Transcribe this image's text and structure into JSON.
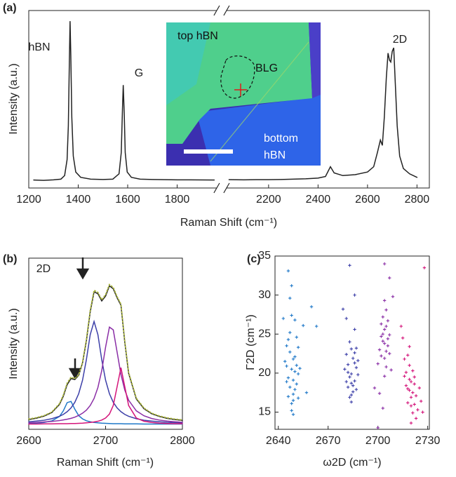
{
  "chart_data": [
    {
      "type": "line",
      "label": "(a)",
      "x_label": "Raman Shift (cm⁻¹)",
      "y_label": "Intensity (a.u.)",
      "annotations": [
        "hBN",
        "G",
        "2D"
      ],
      "inset_labels": [
        "top hBN",
        "BLG",
        "bottom",
        "hBN"
      ],
      "xlim": [
        1200,
        2850
      ],
      "x_break": [
        1960,
        2030
      ],
      "ylim": [
        0,
        1
      ],
      "xticks": [
        1200,
        1400,
        1600,
        1800,
        2200,
        2400,
        2600,
        2800
      ],
      "x": [
        1220,
        1260,
        1300,
        1330,
        1345,
        1355,
        1360,
        1364,
        1367,
        1370,
        1374,
        1380,
        1390,
        1410,
        1450,
        1500,
        1540,
        1565,
        1574,
        1579,
        1582,
        1586,
        1590,
        1598,
        1615,
        1650,
        1700,
        1750,
        1800,
        1850,
        1950,
        2000,
        2040,
        2100,
        2150,
        2200,
        2250,
        2300,
        2350,
        2400,
        2430,
        2450,
        2465,
        2500,
        2550,
        2600,
        2625,
        2640,
        2652,
        2660,
        2668,
        2676,
        2683,
        2689,
        2694,
        2700,
        2706,
        2712,
        2720,
        2730,
        2745,
        2770,
        2800
      ],
      "series": [
        {
          "color": "#222222",
          "values": [
            0.045,
            0.043,
            0.046,
            0.05,
            0.07,
            0.16,
            0.35,
            0.7,
            0.94,
            0.75,
            0.4,
            0.18,
            0.09,
            0.06,
            0.05,
            0.048,
            0.05,
            0.08,
            0.2,
            0.45,
            0.58,
            0.42,
            0.2,
            0.09,
            0.06,
            0.05,
            0.048,
            0.047,
            0.046,
            0.046,
            0.045,
            null,
            0.047,
            0.046,
            0.047,
            0.047,
            0.048,
            0.05,
            0.052,
            0.056,
            0.065,
            0.12,
            0.085,
            0.07,
            0.075,
            0.09,
            0.12,
            0.2,
            0.27,
            0.24,
            0.4,
            0.62,
            0.76,
            0.72,
            0.71,
            0.77,
            0.79,
            0.6,
            0.35,
            0.18,
            0.11,
            0.08,
            0.06
          ]
        }
      ]
    },
    {
      "type": "line",
      "label": "(b)",
      "x_label": "Raman Shift (cm⁻¹)",
      "y_label": "Intensity (a.u.)",
      "annotations": [
        "2D"
      ],
      "xlim": [
        2600,
        2800
      ],
      "ylim": [
        0,
        1
      ],
      "xticks": [
        2600,
        2700,
        2800
      ],
      "x": [
        2600,
        2610,
        2620,
        2630,
        2640,
        2645,
        2650,
        2655,
        2660,
        2665,
        2670,
        2675,
        2680,
        2685,
        2690,
        2695,
        2700,
        2705,
        2710,
        2715,
        2720,
        2725,
        2730,
        2740,
        2750,
        2760,
        2770,
        2780,
        2790,
        2800
      ],
      "series": [
        {
          "color": "#1f78c8",
          "values": [
            0.034,
            0.036,
            0.04,
            0.049,
            0.075,
            0.108,
            0.156,
            0.163,
            0.117,
            0.08,
            0.061,
            0.05,
            0.044,
            0.04,
            0.038,
            0.036,
            0.035,
            0.034,
            0.033,
            0.033,
            0.033,
            0.032,
            0.032,
            0.032,
            0.031,
            0.031,
            0.031,
            0.031,
            0.031,
            0.031
          ]
        },
        {
          "color": "#3c3fa8",
          "values": [
            0.044,
            0.048,
            0.053,
            0.062,
            0.076,
            0.087,
            0.103,
            0.125,
            0.158,
            0.208,
            0.287,
            0.407,
            0.553,
            0.63,
            0.553,
            0.407,
            0.287,
            0.208,
            0.158,
            0.125,
            0.103,
            0.087,
            0.076,
            0.062,
            0.053,
            0.048,
            0.044,
            0.041,
            0.039,
            0.038
          ]
        },
        {
          "color": "#8a2ea6",
          "values": [
            0.038,
            0.04,
            0.043,
            0.046,
            0.051,
            0.055,
            0.059,
            0.064,
            0.071,
            0.081,
            0.094,
            0.112,
            0.139,
            0.18,
            0.244,
            0.343,
            0.48,
            0.597,
            0.581,
            0.451,
            0.32,
            0.229,
            0.17,
            0.108,
            0.079,
            0.063,
            0.054,
            0.048,
            0.044,
            0.041
          ]
        },
        {
          "color": "#d4147a",
          "values": [
            0.031,
            0.031,
            0.032,
            0.032,
            0.033,
            0.033,
            0.033,
            0.034,
            0.034,
            0.035,
            0.036,
            0.038,
            0.04,
            0.043,
            0.047,
            0.054,
            0.066,
            0.089,
            0.139,
            0.249,
            0.36,
            0.249,
            0.139,
            0.066,
            0.047,
            0.04,
            0.036,
            0.034,
            0.033,
            0.033
          ]
        },
        {
          "color": "#222222",
          "values": [
            0.057,
            0.065,
            0.077,
            0.098,
            0.145,
            0.193,
            0.261,
            0.296,
            0.291,
            0.315,
            0.388,
            0.517,
            0.686,
            0.803,
            0.792,
            0.75,
            0.778,
            0.838,
            0.821,
            0.768,
            0.725,
            0.508,
            0.327,
            0.177,
            0.12,
            0.091,
            0.075,
            0.064,
            0.057,
            0.052
          ]
        },
        {
          "color": "#a8b43a",
          "style": "dotted",
          "values": [
            0.06,
            0.068,
            0.08,
            0.101,
            0.15,
            0.2,
            0.27,
            0.305,
            0.296,
            0.318,
            0.392,
            0.525,
            0.695,
            0.812,
            0.8,
            0.757,
            0.787,
            0.846,
            0.829,
            0.775,
            0.731,
            0.515,
            0.333,
            0.182,
            0.124,
            0.094,
            0.078,
            0.067,
            0.06,
            0.055
          ]
        }
      ]
    },
    {
      "type": "scatter",
      "label": "(c)",
      "x_label": "ω2D (cm⁻¹)",
      "y_label": "Γ2D (cm⁻¹)",
      "xlim": [
        2638,
        2731
      ],
      "ylim": [
        12.8,
        35
      ],
      "xticks": [
        2640,
        2670,
        2700,
        2730
      ],
      "yticks": [
        15,
        20,
        25,
        30,
        35
      ],
      "series": [
        {
          "color": "#1f78c8",
          "x": [
            2648,
            2647,
            2650,
            2646,
            2649,
            2651,
            2645,
            2648,
            2652,
            2647,
            2649,
            2650,
            2646,
            2648,
            2651,
            2645,
            2650,
            2647,
            2649,
            2652,
            2644,
            2648,
            2646,
            2650,
            2647,
            2649,
            2653,
            2645,
            2648,
            2651,
            2646,
            2655,
            2660,
            2663,
            2657,
            2643,
            2649,
            2652
          ],
          "values": [
            20.5,
            18.2,
            22.1,
            19.4,
            17.3,
            21.0,
            23.5,
            16.1,
            19.9,
            25.2,
            21.8,
            17.9,
            24.3,
            15.2,
            18.6,
            20.9,
            26.8,
            22.7,
            19.1,
            23.3,
            21.5,
            27.4,
            17.0,
            20.2,
            29.6,
            16.5,
            20.6,
            18.9,
            31.2,
            24.6,
            33.1,
            26.1,
            28.5,
            26.0,
            17.5,
            27.0,
            14.7,
            16.8
          ]
        },
        {
          "color": "#3c3fa8",
          "x": [
            2682,
            2684,
            2686,
            2683,
            2685,
            2681,
            2687,
            2684,
            2683,
            2686,
            2682,
            2685,
            2688,
            2680,
            2684,
            2686,
            2683,
            2685,
            2687,
            2682,
            2684,
            2681,
            2683,
            2686,
            2679,
            2686,
            2688,
            2684,
            2681,
            2687
          ],
          "values": [
            20.1,
            18.7,
            21.3,
            19.5,
            17.6,
            22.4,
            20.7,
            23.1,
            16.9,
            19.0,
            18.2,
            21.9,
            19.8,
            20.5,
            17.2,
            22.6,
            24.0,
            18.4,
            17.9,
            21.1,
            19.9,
            27.0,
            33.8,
            30.0,
            28.2,
            25.6,
            21.6,
            16.3,
            18.9,
            23.2
          ]
        },
        {
          "color": "#8a2ea6",
          "x": [
            2703,
            2705,
            2704,
            2706,
            2702,
            2704,
            2707,
            2703,
            2705,
            2701,
            2706,
            2704,
            2702,
            2705,
            2707,
            2703,
            2704,
            2706,
            2700,
            2705,
            2702,
            2704,
            2701,
            2703,
            2700,
            2707,
            2704,
            2709,
            2698,
            2708
          ],
          "values": [
            24.1,
            22.8,
            25.6,
            23.5,
            26.3,
            21.9,
            24.9,
            27.2,
            20.8,
            23.0,
            26.7,
            23.8,
            22.2,
            28.1,
            22.5,
            25.0,
            19.6,
            24.4,
            21.2,
            26.0,
            24.7,
            29.3,
            17.4,
            15.5,
            13.0,
            32.2,
            34.0,
            29.8,
            18.1,
            20.4
          ]
        },
        {
          "color": "#d4147a",
          "x": [
            2718,
            2720,
            2719,
            2721,
            2717,
            2720,
            2722,
            2718,
            2719,
            2723,
            2716,
            2721,
            2720,
            2718,
            2722,
            2724,
            2719,
            2717,
            2721,
            2723,
            2726,
            2725,
            2715,
            2716,
            2720,
            2727,
            2728,
            2714,
            2719,
            2722
          ],
          "values": [
            18.0,
            16.9,
            19.2,
            17.5,
            20.1,
            15.8,
            18.6,
            16.2,
            21.0,
            17.1,
            19.6,
            14.9,
            18.9,
            22.3,
            16.0,
            15.3,
            17.8,
            18.4,
            20.3,
            14.2,
            16.4,
            18.1,
            24.5,
            21.8,
            13.6,
            15.0,
            33.5,
            26.0,
            23.4,
            19.5
          ]
        }
      ]
    }
  ]
}
